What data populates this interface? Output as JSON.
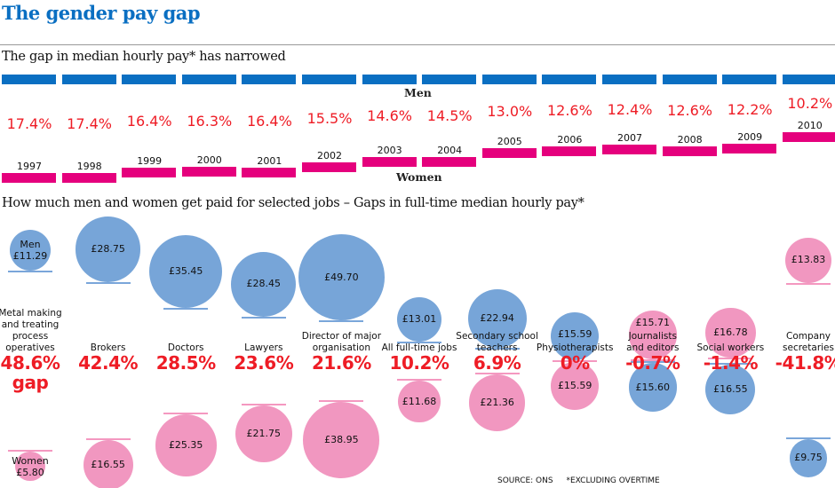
{
  "title": "The gender pay gap",
  "subtitle_trend": "The gap in median hourly pay* has narrowed",
  "subtitle_jobs": "How much men and women get paid for selected jobs – Gaps in full-time median hourly pay*",
  "footer": {
    "source": "SOURCE: ONS",
    "note": "*EXCLUDING OVERTIME"
  },
  "colors": {
    "title": "#0a6fc2",
    "men_bar": "#0a6fc2",
    "women_bar": "#e5007d",
    "gap_text": "#ee1c25",
    "men_circle": "#77a5d8",
    "women_circle": "#f197c0"
  },
  "chart_data": [
    {
      "type": "bar",
      "title": "The gap in median hourly pay* has narrowed",
      "series_labels": {
        "men": "Men",
        "women": "Women"
      },
      "categories": [
        "1997",
        "1998",
        "1999",
        "2000",
        "2001",
        "2002",
        "2003",
        "2004",
        "2005",
        "2006",
        "2007",
        "2008",
        "2009",
        "2010"
      ],
      "values": [
        17.4,
        17.4,
        16.4,
        16.3,
        16.4,
        15.5,
        14.6,
        14.5,
        13.0,
        12.6,
        12.4,
        12.6,
        12.2,
        10.2
      ],
      "value_labels": [
        "17.4%",
        "17.4%",
        "16.4%",
        "16.3%",
        "16.4%",
        "15.5%",
        "14.6%",
        "14.5%",
        "13.0%",
        "12.6%",
        "12.4%",
        "12.6%",
        "12.2%",
        "10.2%"
      ]
    },
    {
      "type": "bubble",
      "title": "How much men and women get paid for selected jobs – Gaps in full-time median hourly pay*",
      "series_labels": {
        "men": "Men",
        "women": "Women"
      },
      "gap_suffix": "gap",
      "jobs": [
        {
          "name": "Metal making\nand treating\nprocess\noperatives",
          "men": 11.29,
          "women": 5.8,
          "men_label": "£11.29",
          "women_label": "£5.80",
          "gap": 48.6,
          "gap_label": "48.6%"
        },
        {
          "name": "Brokers",
          "men": 28.75,
          "women": 16.55,
          "men_label": "£28.75",
          "women_label": "£16.55",
          "gap": 42.4,
          "gap_label": "42.4%"
        },
        {
          "name": "Doctors",
          "men": 35.45,
          "women": 25.35,
          "men_label": "£35.45",
          "women_label": "£25.35",
          "gap": 28.5,
          "gap_label": "28.5%"
        },
        {
          "name": "Lawyers",
          "men": 28.45,
          "women": 21.75,
          "men_label": "£28.45",
          "women_label": "£21.75",
          "gap": 23.6,
          "gap_label": "23.6%"
        },
        {
          "name": "Director of major\norganisation",
          "men": 49.7,
          "women": 38.95,
          "men_label": "£49.70",
          "women_label": "£38.95",
          "gap": 21.6,
          "gap_label": "21.6%"
        },
        {
          "name": "All full-time jobs",
          "men": 13.01,
          "women": 11.68,
          "men_label": "£13.01",
          "women_label": "£11.68",
          "gap": 10.2,
          "gap_label": "10.2%"
        },
        {
          "name": "Secondary school\nteachers",
          "men": 22.94,
          "women": 21.36,
          "men_label": "£22.94",
          "women_label": "£21.36",
          "gap": 6.9,
          "gap_label": "6.9%"
        },
        {
          "name": "Physiotherapists",
          "men": 15.59,
          "women": 15.59,
          "men_label": "£15.59",
          "women_label": "£15.59",
          "gap": 0,
          "gap_label": "0%"
        },
        {
          "name": "Journalists\nand editors",
          "men": 15.6,
          "women": 15.71,
          "men_label": "£15.60",
          "women_label": "£15.71",
          "gap": -0.7,
          "gap_label": "-0.7%"
        },
        {
          "name": "Social workers",
          "men": 16.55,
          "women": 16.78,
          "men_label": "£16.55",
          "women_label": "£16.78",
          "gap": -1.4,
          "gap_label": "-1.4%"
        },
        {
          "name": "Company\nsecretaries",
          "men": 9.75,
          "women": 13.83,
          "men_label": "£9.75",
          "women_label": "£13.83",
          "gap": -41.8,
          "gap_label": "-41.8%"
        }
      ]
    }
  ]
}
